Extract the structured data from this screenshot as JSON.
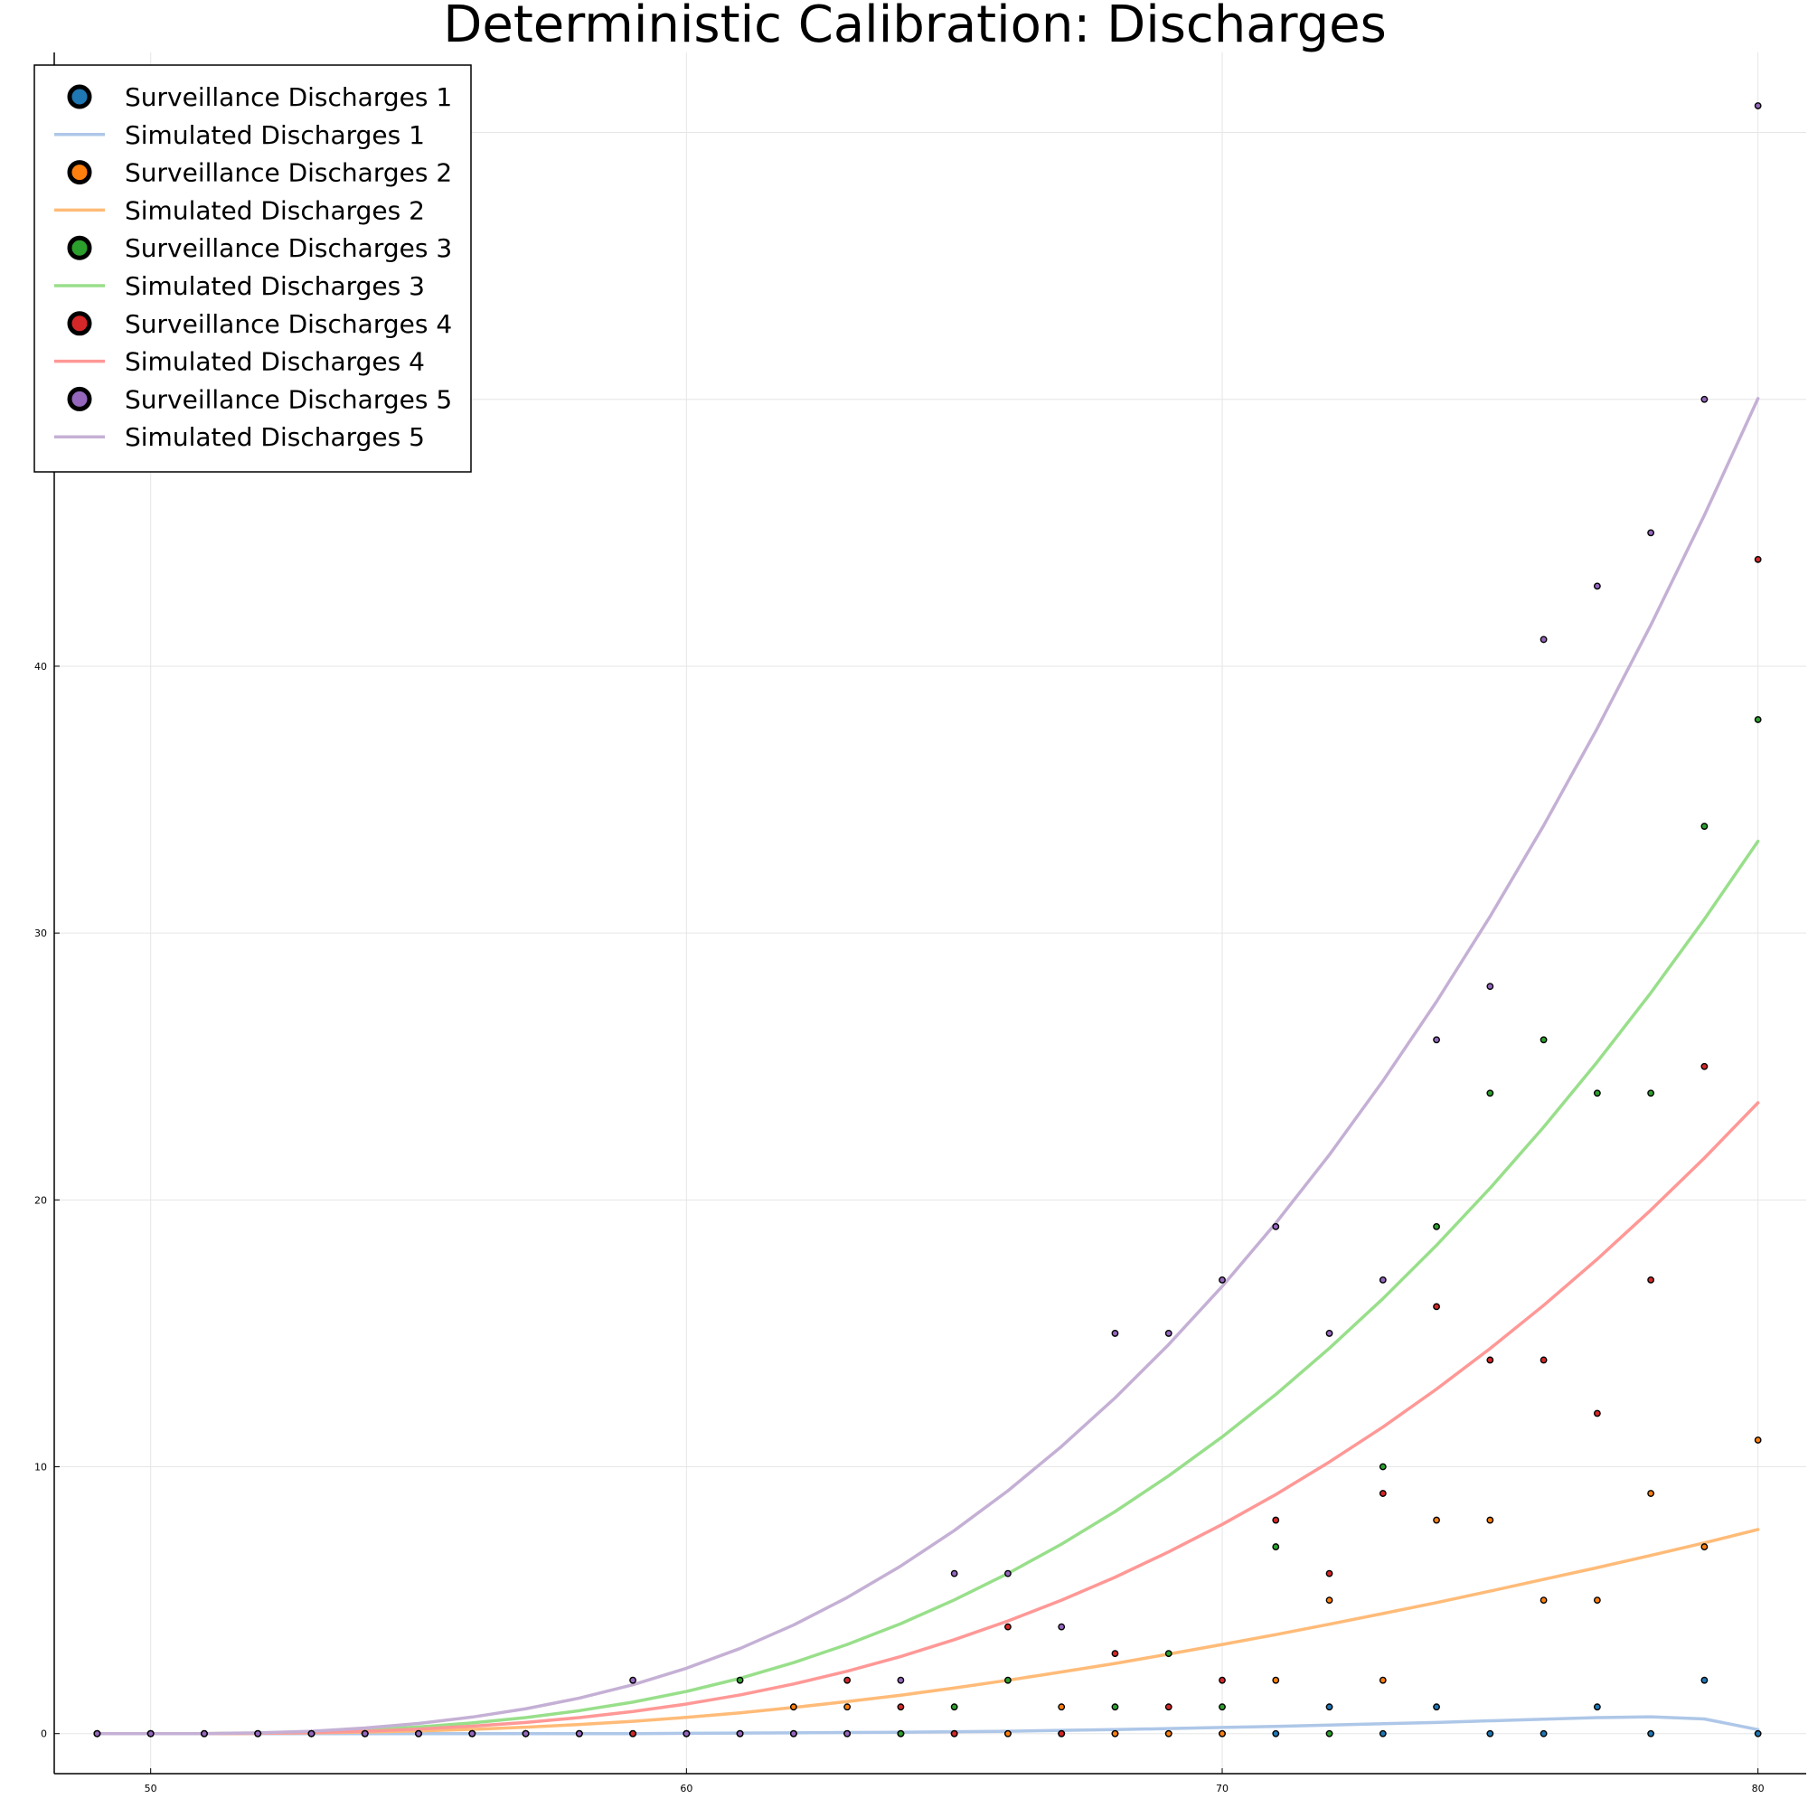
{
  "chart_data": {
    "type": "scatter",
    "title": "Deterministic Calibration: Discharges",
    "xlabel": "",
    "ylabel": "",
    "xlim": [
      48.2,
      80.9
    ],
    "ylim": [
      -1.5,
      63
    ],
    "x_ticks": [
      "50",
      "60",
      "70",
      "80"
    ],
    "y_ticks": [
      "0",
      "10",
      "20",
      "30",
      "40",
      "50",
      "60"
    ],
    "grid": true,
    "legend_position": "top-left",
    "x": [
      49,
      50,
      51,
      52,
      53,
      54,
      55,
      56,
      57,
      58,
      59,
      60,
      61,
      62,
      63,
      64,
      65,
      66,
      67,
      68,
      69,
      70,
      71,
      72,
      73,
      74,
      75,
      76,
      77,
      78,
      79,
      80
    ],
    "series": [
      {
        "name": "Surveillance Discharges 1",
        "kind": "scatter",
        "color": "#1f77b4",
        "values": [
          0,
          0,
          0,
          0,
          0,
          0,
          0,
          0,
          0,
          0,
          0,
          0,
          0,
          0,
          0,
          0,
          0,
          0,
          0,
          0,
          0,
          0,
          0,
          1,
          0,
          1,
          0,
          0,
          1,
          0,
          2,
          0
        ]
      },
      {
        "name": "Simulated Discharges 1",
        "kind": "line",
        "color": "#aec7e8",
        "values": [
          0,
          0,
          0,
          0,
          0,
          0,
          0,
          0,
          0,
          0,
          0,
          0.01,
          0.02,
          0.03,
          0.04,
          0.05,
          0.07,
          0.09,
          0.12,
          0.15,
          0.19,
          0.23,
          0.27,
          0.32,
          0.37,
          0.42,
          0.48,
          0.54,
          0.6,
          0.63,
          0.55,
          0.15
        ]
      },
      {
        "name": "Surveillance Discharges 2",
        "kind": "scatter",
        "color": "#ff7f0e",
        "values": [
          0,
          0,
          0,
          0,
          0,
          0,
          0,
          0,
          0,
          0,
          0,
          0,
          0,
          1,
          1,
          0,
          0,
          0,
          1,
          0,
          0,
          0,
          2,
          5,
          2,
          8,
          8,
          5,
          5,
          9,
          7,
          11
        ]
      },
      {
        "name": "Simulated Discharges 2",
        "kind": "line",
        "color": "#ffbb78",
        "values": [
          0,
          0,
          0,
          0.01,
          0.03,
          0.06,
          0.1,
          0.16,
          0.24,
          0.34,
          0.46,
          0.61,
          0.78,
          0.98,
          1.2,
          1.44,
          1.71,
          2.0,
          2.31,
          2.63,
          2.98,
          3.34,
          3.71,
          4.1,
          4.5,
          4.91,
          5.34,
          5.78,
          6.22,
          6.68,
          7.15,
          7.65
        ]
      },
      {
        "name": "Surveillance Discharges 3",
        "kind": "scatter",
        "color": "#2ca02c",
        "values": [
          0,
          0,
          0,
          0,
          0,
          0,
          0,
          0,
          0,
          0,
          0,
          0,
          2,
          0,
          0,
          0,
          1,
          2,
          0,
          1,
          3,
          1,
          7,
          0,
          10,
          19,
          24,
          26,
          24,
          24,
          34,
          38
        ]
      },
      {
        "name": "Simulated Discharges 3",
        "kind": "line",
        "color": "#98df8a",
        "values": [
          0,
          0,
          0,
          0.02,
          0.06,
          0.14,
          0.25,
          0.4,
          0.6,
          0.86,
          1.18,
          1.58,
          2.07,
          2.66,
          3.34,
          4.12,
          5.01,
          6.0,
          7.1,
          8.32,
          9.66,
          11.12,
          12.71,
          14.44,
          16.3,
          18.3,
          20.44,
          22.73,
          25.17,
          27.76,
          30.52,
          33.44
        ]
      },
      {
        "name": "Surveillance Discharges 4",
        "kind": "scatter",
        "color": "#d62728",
        "values": [
          0,
          0,
          0,
          0,
          0,
          0,
          0,
          0,
          0,
          0,
          0,
          0,
          0,
          0,
          2,
          1,
          0,
          4,
          0,
          3,
          1,
          2,
          8,
          6,
          9,
          16,
          14,
          14,
          12,
          17,
          25,
          44
        ]
      },
      {
        "name": "Simulated Discharges 4",
        "kind": "line",
        "color": "#ff9896",
        "values": [
          0,
          0,
          0,
          0.01,
          0.04,
          0.09,
          0.17,
          0.28,
          0.42,
          0.6,
          0.83,
          1.11,
          1.45,
          1.86,
          2.34,
          2.89,
          3.52,
          4.22,
          5.0,
          5.86,
          6.81,
          7.84,
          8.96,
          10.18,
          11.49,
          12.91,
          14.43,
          16.05,
          17.78,
          19.62,
          21.57,
          23.64
        ]
      },
      {
        "name": "Surveillance Discharges 5",
        "kind": "scatter",
        "color": "#9467bd",
        "values": [
          0,
          0,
          0,
          0,
          0,
          0,
          0,
          0,
          0,
          0,
          2,
          0,
          0,
          0,
          0,
          2,
          6,
          6,
          4,
          15,
          15,
          17,
          19,
          15,
          17,
          26,
          28,
          41,
          43,
          45,
          50,
          61
        ]
      },
      {
        "name": "Simulated Discharges 5",
        "kind": "line",
        "color": "#c5b0d5",
        "values": [
          0,
          0,
          0,
          0.03,
          0.09,
          0.21,
          0.38,
          0.62,
          0.93,
          1.33,
          1.83,
          2.45,
          3.19,
          4.07,
          5.1,
          6.28,
          7.61,
          9.1,
          10.76,
          12.58,
          14.58,
          16.76,
          19.13,
          21.69,
          24.46,
          27.43,
          30.62,
          34.03,
          37.67,
          41.54,
          45.66,
          50.03
        ]
      }
    ]
  }
}
